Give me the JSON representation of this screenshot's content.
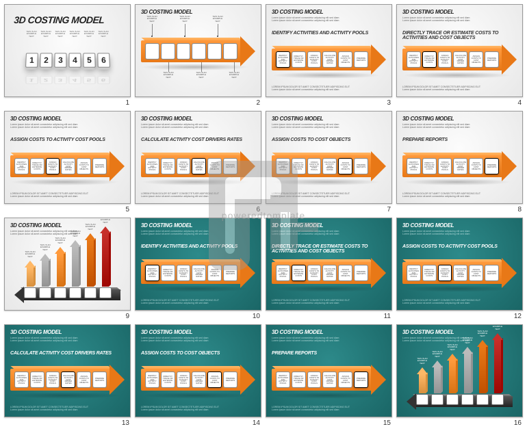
{
  "brand_watermark": "poweredtemplate",
  "colors": {
    "orange_light": "#ff9a3c",
    "orange_dark": "#e87817",
    "teal_bg": "#2d8a8a",
    "teal_bg_dark": "#1a6666",
    "light_bg": "#f5f5f5",
    "bar_gray": "#bbbbbb",
    "bar_red": "#c62f2a",
    "bar_orange1": "#e87817",
    "bar_orange2": "#ff9a3c",
    "bar_orange3": "#ffb866"
  },
  "title": "3D COSTING MODEL",
  "lorem_short": "Lorem ipsum dolor sit amet consectetur adipiscing elit sed diam",
  "lorem_long": "LOREM IPSUM DOLOR SIT AMET CONSECTETUER ADIPISCING ELIT",
  "example_text": "THIS IS AN EXAMPLE TEXT",
  "steps": [
    "IDENTIFY ACTIVITIES AND ACTIVITY POOLS",
    "DIRECTLY TRACE OR ESTIMATE COSTS TO ACTIVITIES AND COST OBJECTS",
    "ASSIGN COSTS TO ACTIVITY COST POOLS",
    "CALCULATE ACTIVITY COST DRIVERS RATES",
    "ASSIGN COSTS TO COST OBJECTS",
    "PREPARE REPORTS"
  ],
  "box_labels": [
    "IDENTIFY ACTIVITIES AND ACTIVITY POOLS",
    "DIRECTLY TRACE OR ESTIMATE COSTS",
    "ASSIGN COSTS TO ACTIVITY COST POOLS",
    "CALCULATE ACTIVITY COST DRIVER RATES",
    "ASSIGN COSTS TO COST OBJECTS",
    "PREPARE REPORTS"
  ],
  "slides": [
    {
      "n": 1,
      "bg": "light",
      "layout": "numblocks"
    },
    {
      "n": 2,
      "bg": "light",
      "layout": "anno_arrow"
    },
    {
      "n": 3,
      "bg": "light",
      "layout": "step",
      "step_idx": 0,
      "hl": 0
    },
    {
      "n": 4,
      "bg": "light",
      "layout": "step",
      "step_idx": 1,
      "hl": 1
    },
    {
      "n": 5,
      "bg": "light",
      "layout": "step",
      "step_idx": 2,
      "hl": 2
    },
    {
      "n": 6,
      "bg": "light",
      "layout": "step",
      "step_idx": 3,
      "hl": 3
    },
    {
      "n": 7,
      "bg": "light",
      "layout": "step",
      "step_idx": 4,
      "hl": 4
    },
    {
      "n": 8,
      "bg": "light",
      "layout": "step",
      "step_idx": 5,
      "hl": 5
    },
    {
      "n": 9,
      "bg": "light",
      "layout": "bars"
    },
    {
      "n": 10,
      "bg": "teal",
      "layout": "step",
      "step_idx": 0,
      "hl": 0
    },
    {
      "n": 11,
      "bg": "teal",
      "layout": "step",
      "step_idx": 1,
      "hl": 1
    },
    {
      "n": 12,
      "bg": "teal",
      "layout": "step",
      "step_idx": 2,
      "hl": 2
    },
    {
      "n": 13,
      "bg": "teal",
      "layout": "step",
      "step_idx": 3,
      "hl": 3
    },
    {
      "n": 14,
      "bg": "teal",
      "layout": "step",
      "step_idx": 4,
      "hl": 4
    },
    {
      "n": 15,
      "bg": "teal",
      "layout": "step",
      "step_idx": 5,
      "hl": 5
    },
    {
      "n": 16,
      "bg": "teal",
      "layout": "bars"
    }
  ],
  "bars_chart": {
    "heights": [
      38,
      48,
      58,
      68,
      78,
      88
    ],
    "colors": [
      "#ffb866",
      "#bbbbbb",
      "#ff9a3c",
      "#bbbbbb",
      "#e87817",
      "#c62f2a"
    ],
    "positions": [
      18,
      40,
      62,
      84,
      106,
      128
    ],
    "box_positions": [
      14,
      36,
      58,
      80,
      102,
      124
    ]
  }
}
